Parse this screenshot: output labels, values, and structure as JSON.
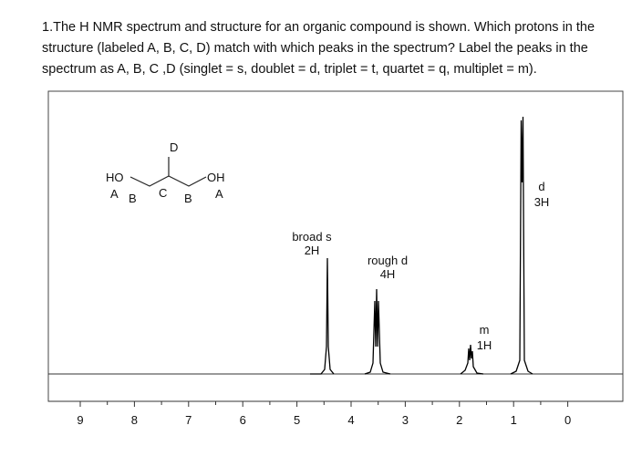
{
  "question": {
    "lines": [
      "1.The H NMR spectrum and structure for an organic compound is shown. Which protons in the",
      "structure (labeled A, B, C, D) match with which peaks in the spectrum? Label the peaks in the",
      "spectrum as A, B, C ,D (singlet = s, doublet = d, triplet = t, quartet = q, multiplet = m)."
    ]
  },
  "structure": {
    "groups": [
      "HO",
      "OH"
    ],
    "labels": [
      "A",
      "B",
      "C",
      "B",
      "A",
      "D"
    ]
  },
  "spectrum": {
    "peaks": [
      {
        "label": "broad s",
        "integration": "2H"
      },
      {
        "label": "rough d",
        "integration": "4H"
      },
      {
        "label": "m",
        "integration": "1H"
      },
      {
        "label": "d",
        "integration": "3H"
      }
    ],
    "axis_ticks": [
      "9",
      "8",
      "7",
      "6",
      "5",
      "4",
      "3",
      "2",
      "1",
      "0"
    ]
  }
}
